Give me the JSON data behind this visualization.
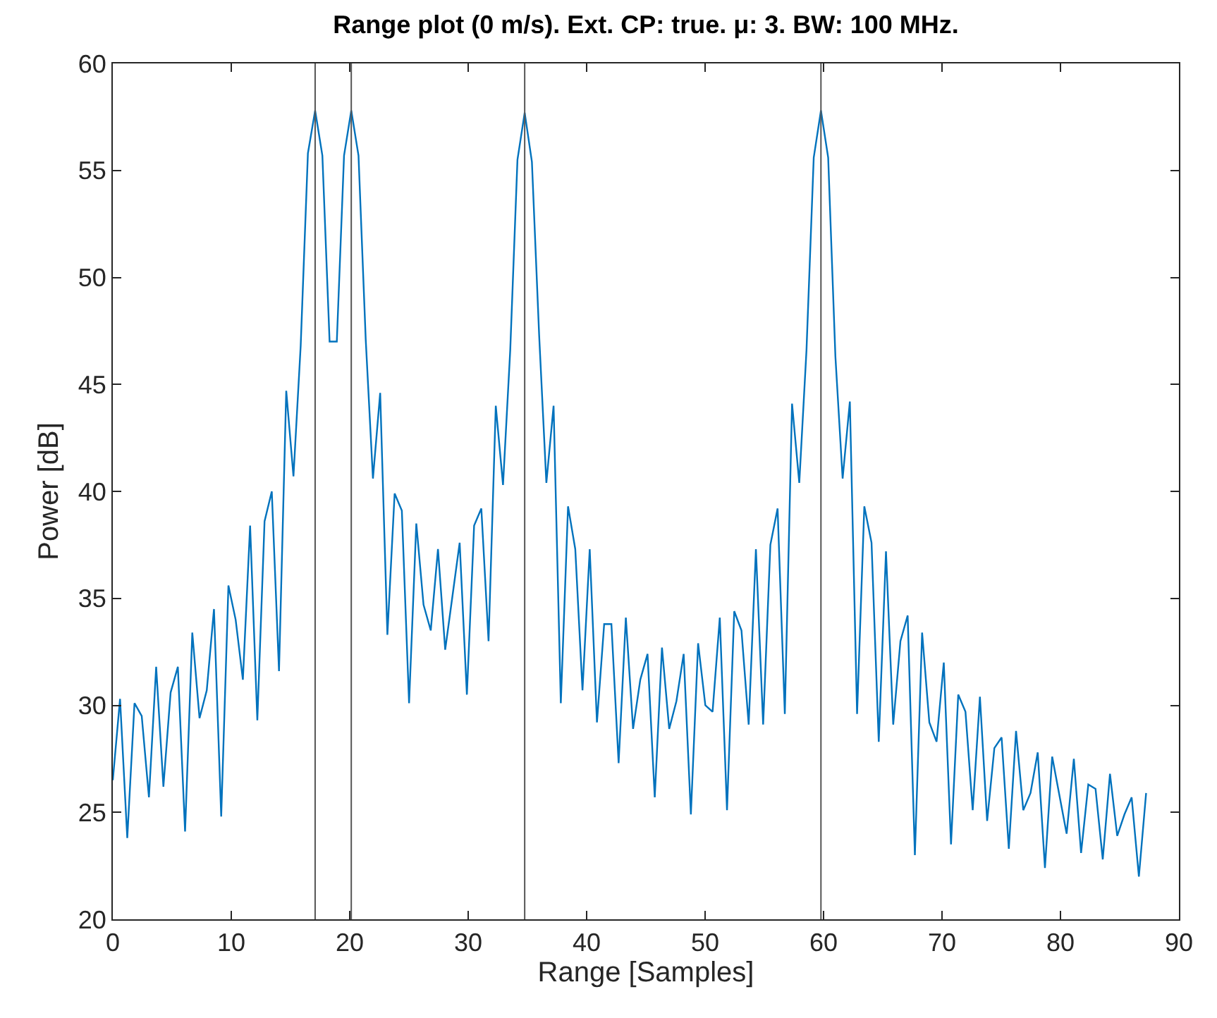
{
  "chart_data": {
    "type": "line",
    "title": "Range plot (0 m/s). Ext. CP: true. μ: 3. BW: 100 MHz.",
    "xlabel": "Range [Samples]",
    "ylabel": "Power [dB]",
    "xlim": [
      0,
      90
    ],
    "xticks": [
      0,
      10,
      20,
      30,
      40,
      50,
      60,
      70,
      80,
      90
    ],
    "ylim": [
      20,
      60
    ],
    "yticks": [
      20,
      25,
      30,
      35,
      40,
      45,
      50,
      55,
      60
    ],
    "marker": "none",
    "line_style": "solid",
    "x": [
      0,
      0.61,
      1.22,
      1.83,
      2.44,
      3.05,
      3.66,
      4.27,
      4.88,
      5.49,
      6.1,
      6.71,
      7.32,
      7.93,
      8.54,
      9.15,
      9.76,
      10.37,
      10.98,
      11.59,
      12.2,
      12.81,
      13.42,
      14.03,
      14.64,
      15.25,
      15.86,
      16.47,
      17.08,
      17.69,
      18.3,
      18.91,
      19.52,
      20.13,
      20.74,
      21.35,
      21.96,
      22.57,
      23.18,
      23.79,
      24.4,
      25.01,
      25.62,
      26.23,
      26.84,
      27.45,
      28.06,
      28.67,
      29.28,
      29.89,
      30.5,
      31.11,
      31.72,
      32.33,
      32.94,
      33.55,
      34.16,
      34.77,
      35.38,
      35.99,
      36.6,
      37.21,
      37.82,
      38.43,
      39.04,
      39.65,
      40.26,
      40.87,
      41.48,
      42.09,
      42.7,
      43.31,
      43.92,
      44.53,
      45.14,
      45.75,
      46.36,
      46.97,
      47.58,
      48.19,
      48.8,
      49.41,
      50.02,
      50.63,
      51.24,
      51.85,
      52.46,
      53.07,
      53.68,
      54.29,
      54.9,
      55.51,
      56.12,
      56.73,
      57.34,
      57.95,
      58.56,
      59.17,
      59.78,
      60.39,
      61,
      61.61,
      62.22,
      62.83,
      63.44,
      64.05,
      64.66,
      65.27,
      65.88,
      66.49,
      67.1,
      67.71,
      68.32,
      68.93,
      69.54,
      70.15,
      70.76,
      71.37,
      71.98,
      72.59,
      73.2,
      73.81,
      74.42,
      75.03,
      75.64,
      76.25,
      76.86,
      77.47,
      78.08,
      78.69,
      79.3,
      79.91,
      80.52,
      81.13,
      81.74,
      82.35,
      82.96,
      83.57,
      84.18,
      84.79,
      85.4,
      86.01,
      86.62,
      87.23
    ],
    "series": [
      {
        "color": "#0072bd",
        "values": [
          26.5,
          30.3,
          23.8,
          30.1,
          29.5,
          25.7,
          31.8,
          26.2,
          30.6,
          31.8,
          24.1,
          33.4,
          29.4,
          30.7,
          34.5,
          24.8,
          35.6,
          34.0,
          31.2,
          38.4,
          29.3,
          38.6,
          40.0,
          31.6,
          44.7,
          40.7,
          46.8,
          55.8,
          57.8,
          55.7,
          47.0,
          47.0,
          55.7,
          57.8,
          55.7,
          47.1,
          40.6,
          44.6,
          33.3,
          39.9,
          39.1,
          30.1,
          38.5,
          34.7,
          33.5,
          37.3,
          32.6,
          35.1,
          37.6,
          30.5,
          38.4,
          39.2,
          33.0,
          44.0,
          40.3,
          46.6,
          55.5,
          57.7,
          55.4,
          47.3,
          40.4,
          44.0,
          30.1,
          39.3,
          37.3,
          30.7,
          37.3,
          29.2,
          33.8,
          33.8,
          27.3,
          34.1,
          28.9,
          31.2,
          32.4,
          25.7,
          32.7,
          28.9,
          30.2,
          32.4,
          24.9,
          32.9,
          30.0,
          29.7,
          34.1,
          25.1,
          34.4,
          33.5,
          29.1,
          37.3,
          29.1,
          37.5,
          39.2,
          29.6,
          44.1,
          40.4,
          46.6,
          55.6,
          57.8,
          55.6,
          46.3,
          40.6,
          44.2,
          29.6,
          39.3,
          37.6,
          28.3,
          37.2,
          29.1,
          33.0,
          34.2,
          23.0,
          33.4,
          29.2,
          28.3,
          32.0,
          23.5,
          30.5,
          29.7,
          25.1,
          30.4,
          24.6,
          28.0,
          28.5,
          23.3,
          28.8,
          25.1,
          25.9,
          27.8,
          22.4,
          27.6,
          25.8,
          24.0,
          27.5,
          23.1,
          26.3,
          26.1,
          22.8,
          26.8,
          23.9,
          24.9,
          25.7,
          22.0,
          25.9
        ]
      }
    ],
    "ref_lines": [
      {
        "axis": "x",
        "value": 17.08,
        "color": "#555555"
      },
      {
        "axis": "x",
        "value": 20.13,
        "color": "#555555"
      },
      {
        "axis": "x",
        "value": 34.77,
        "color": "#555555"
      },
      {
        "axis": "x",
        "value": 59.78,
        "color": "#555555"
      }
    ]
  }
}
